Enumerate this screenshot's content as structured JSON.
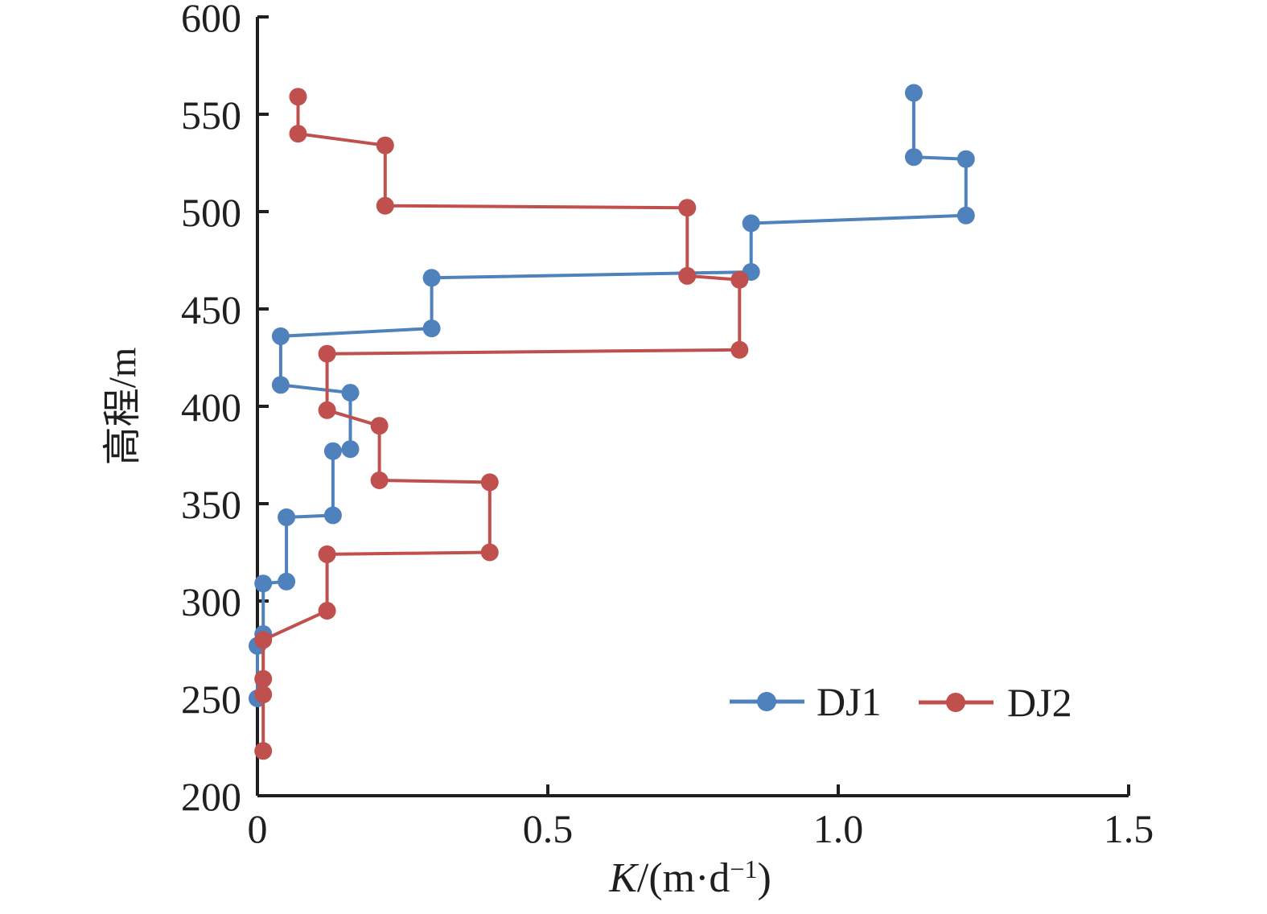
{
  "figure": {
    "background": "#ffffff",
    "axis_color": "#1f1f1f",
    "text_color": "#1f1f1f"
  },
  "chart_data": {
    "type": "line",
    "title": "",
    "xlabel": "K/(m·d⁻¹)",
    "xlabel_parts": {
      "variable": "K",
      "unit_prefix": "/(m·d",
      "superscript": "−1",
      "unit_suffix": ")"
    },
    "ylabel": "高程/m",
    "xlim": [
      0,
      1.5
    ],
    "ylim": [
      200,
      600
    ],
    "x_ticks": [
      0,
      0.5,
      1.0,
      1.5
    ],
    "x_tick_labels": [
      "0",
      "0.5",
      "1.0",
      "1.5"
    ],
    "y_ticks": [
      600,
      550,
      500,
      450,
      400,
      350,
      300,
      250,
      200
    ],
    "y_tick_labels": [
      "600",
      "550",
      "500",
      "450",
      "400",
      "350",
      "300",
      "250",
      "200"
    ],
    "grid": false,
    "legend": {
      "position": "inside-bottom-right",
      "entries": [
        "DJ1",
        "DJ2"
      ]
    },
    "series": [
      {
        "name": "DJ1",
        "color": "#4f81bd",
        "marker": "circle",
        "points": [
          [
            1.13,
            561
          ],
          [
            1.13,
            528
          ],
          [
            1.22,
            527
          ],
          [
            1.22,
            498
          ],
          [
            0.85,
            494
          ],
          [
            0.85,
            469
          ],
          [
            0.3,
            466
          ],
          [
            0.3,
            440
          ],
          [
            0.04,
            436
          ],
          [
            0.04,
            411
          ],
          [
            0.16,
            407
          ],
          [
            0.16,
            378
          ],
          [
            0.13,
            377
          ],
          [
            0.13,
            344
          ],
          [
            0.05,
            343
          ],
          [
            0.05,
            310
          ],
          [
            0.01,
            309
          ],
          [
            0.01,
            283
          ],
          [
            0.0,
            277
          ],
          [
            0.0,
            250
          ]
        ]
      },
      {
        "name": "DJ2",
        "color": "#c0504d",
        "marker": "circle",
        "points": [
          [
            0.07,
            559
          ],
          [
            0.07,
            540
          ],
          [
            0.22,
            534
          ],
          [
            0.22,
            503
          ],
          [
            0.74,
            502
          ],
          [
            0.74,
            467
          ],
          [
            0.83,
            465
          ],
          [
            0.83,
            429
          ],
          [
            0.12,
            427
          ],
          [
            0.12,
            398
          ],
          [
            0.21,
            390
          ],
          [
            0.21,
            362
          ],
          [
            0.4,
            361
          ],
          [
            0.4,
            325
          ],
          [
            0.12,
            324
          ],
          [
            0.12,
            295
          ],
          [
            0.01,
            280
          ],
          [
            0.01,
            260
          ],
          [
            0.01,
            252
          ],
          [
            0.01,
            223
          ]
        ]
      }
    ]
  }
}
